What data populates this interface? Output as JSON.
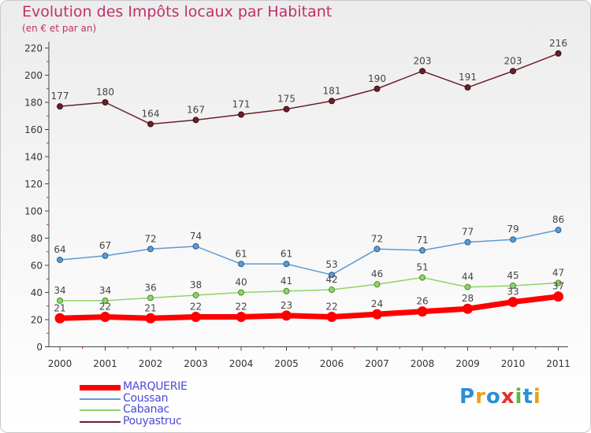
{
  "title": "Evolution des Impôts locaux par Habitant",
  "subtitle": "(en € et par an)",
  "logo": {
    "text": "Proxiti",
    "colors": [
      "#2b8fd6",
      "#e8a020",
      "#2b8fd6",
      "#e83030",
      "#58b848",
      "#2b8fd6",
      "#e8a020"
    ]
  },
  "chart_data": {
    "type": "line",
    "title": "Evolution des Impôts locaux par Habitant",
    "subtitle": "(en € et par an)",
    "x": [
      "2000",
      "2001",
      "2002",
      "2003",
      "2004",
      "2005",
      "2006",
      "2007",
      "2008",
      "2009",
      "2010",
      "2011"
    ],
    "ylim": [
      0,
      220
    ],
    "yticks": [
      0,
      20,
      40,
      60,
      80,
      100,
      120,
      140,
      160,
      180,
      200,
      220
    ],
    "grid": false,
    "legend_position": "bottom-left",
    "series": [
      {
        "name": "MARQUERIE",
        "color": "#ff0000",
        "values": [
          21,
          22,
          21,
          22,
          22,
          23,
          22,
          24,
          26,
          28,
          33,
          37
        ]
      },
      {
        "name": "Coussan",
        "color": "#5b9bd5",
        "values": [
          64,
          67,
          72,
          74,
          61,
          61,
          53,
          72,
          71,
          77,
          79,
          86
        ]
      },
      {
        "name": "Cabanac",
        "color": "#8ed46a",
        "values": [
          34,
          34,
          36,
          38,
          40,
          41,
          42,
          46,
          51,
          44,
          45,
          47
        ]
      },
      {
        "name": "Pouyastruc",
        "color": "#6b1f2a",
        "values": [
          177,
          180,
          164,
          167,
          171,
          175,
          181,
          190,
          203,
          191,
          203,
          216
        ]
      }
    ]
  }
}
